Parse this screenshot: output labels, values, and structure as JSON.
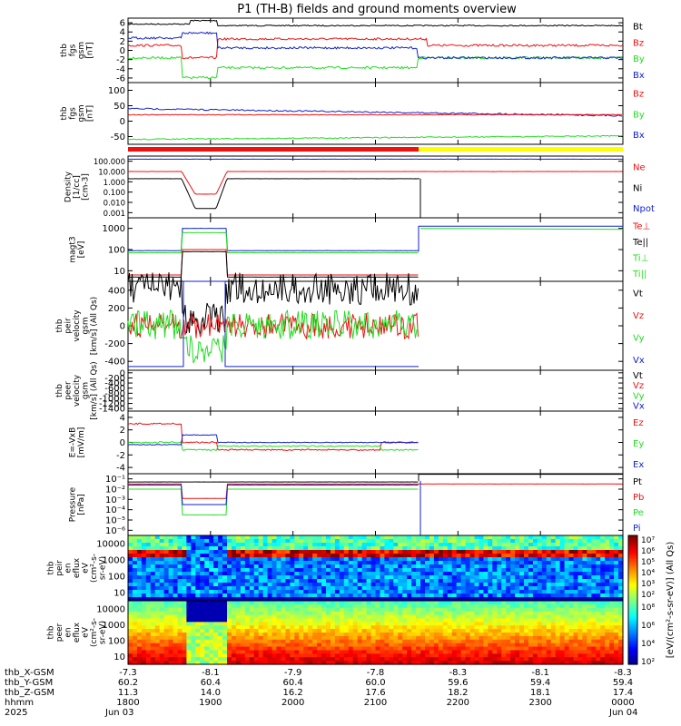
{
  "title": "P1 (TH-B) fields and ground moments overview",
  "colors": {
    "black": "#000000",
    "red": "#ee1111",
    "green": "#22dd22",
    "blue": "#1122cc",
    "yellow": "#ffff00"
  },
  "chart_data": {
    "type": "line",
    "x_axis": {
      "hhmm": [
        "1800",
        "1900",
        "2000",
        "2100",
        "2200",
        "2300",
        "0000"
      ],
      "dates": {
        "start": "Jun 03",
        "end": "Jun 04"
      },
      "year": "2025",
      "row_labels": [
        "thb_X-GSM",
        "thb_Y-GSM",
        "thb_Z-GSM",
        "hhmm",
        "2025"
      ],
      "thb_X_GSM": [
        "-7.3",
        "-8.1",
        "-7.9",
        "-7.8",
        "-8.3",
        "-8.1",
        "-8.3"
      ],
      "thb_Y_GSM": [
        "60.2",
        "60.4",
        "60.4",
        "60.0",
        "59.6",
        "59.4",
        "59.4"
      ],
      "thb_Z_GSM": [
        "11.3",
        "14.0",
        "16.2",
        "17.6",
        "18.2",
        "18.1",
        "17.4"
      ]
    },
    "panels": [
      {
        "id": "fgs1",
        "ylabel": [
          "thb",
          "fgs",
          "gsm",
          "[nT]"
        ],
        "yticks": [
          "6",
          "4",
          "2",
          "0",
          "-2",
          "-4",
          "-6"
        ],
        "ylim": [
          -6,
          7
        ],
        "legend": [
          {
            "name": "Bt",
            "color": "#000000"
          },
          {
            "name": "Bz",
            "color": "#ee1111"
          },
          {
            "name": "By",
            "color": "#22dd22"
          },
          {
            "name": "Bx",
            "color": "#1122cc"
          }
        ]
      },
      {
        "id": "fgs2",
        "ylabel": [
          "thb",
          "fgs",
          "gsm",
          "[nT]"
        ],
        "yticks": [
          "100",
          "50",
          "0",
          "-50"
        ],
        "ylim": [
          -90,
          100
        ],
        "legend": [
          {
            "name": "Bz",
            "color": "#ee1111"
          },
          {
            "name": "By",
            "color": "#22dd22"
          },
          {
            "name": "Bx",
            "color": "#1122cc"
          }
        ]
      },
      {
        "id": "density",
        "ylabel": [
          "Density",
          "[1/cc]",
          "[cm-3]"
        ],
        "yticks": [
          "100.000",
          "10.000",
          "1.000",
          "0.100",
          "0.010",
          "0.001"
        ],
        "log": true,
        "legend": [
          {
            "name": "Ne",
            "color": "#ee1111"
          },
          {
            "name": "Ni",
            "color": "#000000"
          },
          {
            "name": "Npot",
            "color": "#1122cc"
          }
        ]
      },
      {
        "id": "temp",
        "ylabel": [
          "magt3",
          "[eV]"
        ],
        "yticks": [
          "1000",
          "100",
          "10"
        ],
        "log": true,
        "legend": [
          {
            "name": "Te⊥",
            "color": "#ee1111"
          },
          {
            "name": "Te||",
            "color": "#000000"
          },
          {
            "name": "Ti⊥",
            "color": "#22dd22"
          },
          {
            "name": "Ti||",
            "color": "#22dd22"
          }
        ]
      },
      {
        "id": "peir_v",
        "ylabel": [
          "thb",
          "peir",
          "velocity",
          "gsm",
          "[km/s] (All Qs)"
        ],
        "yticks": [
          "400",
          "200",
          "0",
          "-200",
          "-400"
        ],
        "ylim": [
          -480,
          480
        ],
        "legend": [
          {
            "name": "Vt",
            "color": "#000000"
          },
          {
            "name": "Vz",
            "color": "#ee1111"
          },
          {
            "name": "Vy",
            "color": "#22dd22"
          },
          {
            "name": "Vx",
            "color": "#1122cc"
          }
        ]
      },
      {
        "id": "peer_v",
        "ylabel": [
          "thb",
          "peer",
          "velocity",
          "gsm",
          "[km/s] (All Qs)"
        ],
        "yticks": [
          "0",
          "-200",
          "-400",
          "-600",
          "-800",
          "-1000",
          "-1200",
          "-1400"
        ],
        "ylim": [
          -1450,
          130
        ],
        "legend": [
          {
            "name": "Vt",
            "color": "#000000"
          },
          {
            "name": "Vz",
            "color": "#ee1111"
          },
          {
            "name": "Vy",
            "color": "#22dd22"
          },
          {
            "name": "Vx",
            "color": "#1122cc"
          }
        ]
      },
      {
        "id": "efield",
        "ylabel": [
          "E=-VxB",
          "[mV/m]"
        ],
        "yticks": [
          "4",
          "2",
          "0",
          "-2",
          "-4"
        ],
        "ylim": [
          -4.2,
          4.2
        ],
        "legend": [
          {
            "name": "Ez",
            "color": "#ee1111"
          },
          {
            "name": "Ey",
            "color": "#22dd22"
          },
          {
            "name": "Ex",
            "color": "#1122cc"
          }
        ]
      },
      {
        "id": "pressure",
        "ylabel": [
          "Pressure",
          "[nPa]"
        ],
        "yticks": [
          "10⁻¹",
          "10⁻²",
          "10⁻³",
          "10⁻⁴",
          "10⁻⁵",
          "10⁻⁶"
        ],
        "log": true,
        "legend": [
          {
            "name": "Pt",
            "color": "#000000"
          },
          {
            "name": "Pb",
            "color": "#ee1111"
          },
          {
            "name": "Pe",
            "color": "#22dd22"
          },
          {
            "name": "Pi",
            "color": "#1122cc"
          }
        ]
      },
      {
        "id": "peir_spec",
        "type": "heatmap",
        "ylabel": [
          "thb",
          "peir",
          "en",
          "eflux",
          "eV",
          "(cm²-s-",
          "sr-eV)"
        ],
        "yticks": [
          "10000",
          "1000",
          "100",
          "10"
        ]
      },
      {
        "id": "peer_spec",
        "type": "heatmap",
        "ylabel": [
          "thb",
          "peer",
          "en",
          "eflux",
          "eV",
          "(cm²-s-",
          "sr-eV)"
        ],
        "yticks": [
          "10000",
          "1000",
          "100",
          "10"
        ]
      }
    ],
    "colorbar": {
      "label": "[eV/(cm²-s-sr-eV)] (All Qs)",
      "top_ticks": [
        "10⁷",
        "10⁶",
        "10⁵",
        "10⁴",
        "10³",
        "10²"
      ],
      "bottom_ticks": [
        "10⁸",
        "10⁶",
        "10⁴",
        "10²"
      ]
    }
  }
}
